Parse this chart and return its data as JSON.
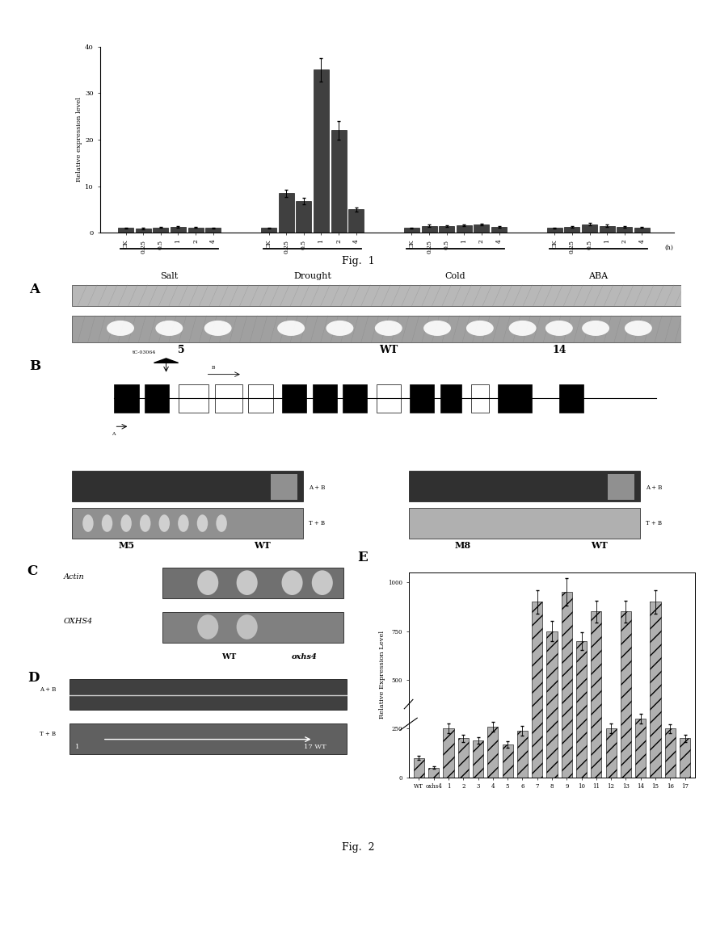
{
  "fig1": {
    "ylabel": "Relative expression level",
    "groups": [
      "Salt",
      "Drought",
      "Cold",
      "ABA"
    ],
    "timepoints": [
      "CK",
      "0.25",
      "0.5",
      "1",
      "2",
      "4"
    ],
    "bar_values": [
      [
        1.0,
        0.9,
        1.1,
        1.2,
        1.1,
        1.0
      ],
      [
        1.0,
        8.5,
        6.8,
        35.0,
        22.0,
        5.0
      ],
      [
        1.0,
        1.5,
        1.4,
        1.6,
        1.8,
        1.3
      ],
      [
        1.0,
        1.2,
        1.8,
        1.5,
        1.3,
        1.1
      ]
    ],
    "bar_errors": [
      [
        0.1,
        0.1,
        0.1,
        0.15,
        0.1,
        0.1
      ],
      [
        0.1,
        0.8,
        0.7,
        2.5,
        2.0,
        0.5
      ],
      [
        0.1,
        0.2,
        0.2,
        0.25,
        0.2,
        0.15
      ],
      [
        0.1,
        0.15,
        0.25,
        0.2,
        0.15,
        0.1
      ]
    ],
    "ylim": [
      0,
      40
    ],
    "yticks": [
      0,
      10,
      20,
      30,
      40
    ],
    "bar_color": "#404040"
  },
  "fig2_e": {
    "categories": [
      "WT",
      "oxhs4",
      "1",
      "2",
      "3",
      "4",
      "5",
      "6",
      "7",
      "8",
      "9",
      "10",
      "11",
      "12",
      "13",
      "14",
      "15",
      "16",
      "17"
    ],
    "values": [
      100,
      50,
      250,
      200,
      190,
      260,
      170,
      240,
      900,
      750,
      950,
      700,
      850,
      250,
      850,
      300,
      900,
      250,
      200
    ],
    "errors": [
      10,
      5,
      25,
      20,
      18,
      26,
      17,
      24,
      60,
      50,
      70,
      45,
      55,
      25,
      55,
      25,
      60,
      22,
      18
    ],
    "ylabel": "Relative Expression Level",
    "ylim": [
      0,
      1050
    ],
    "yticks": [
      0,
      250,
      500,
      750,
      1000
    ],
    "bar_color": "#909090"
  },
  "background_color": "#ffffff"
}
